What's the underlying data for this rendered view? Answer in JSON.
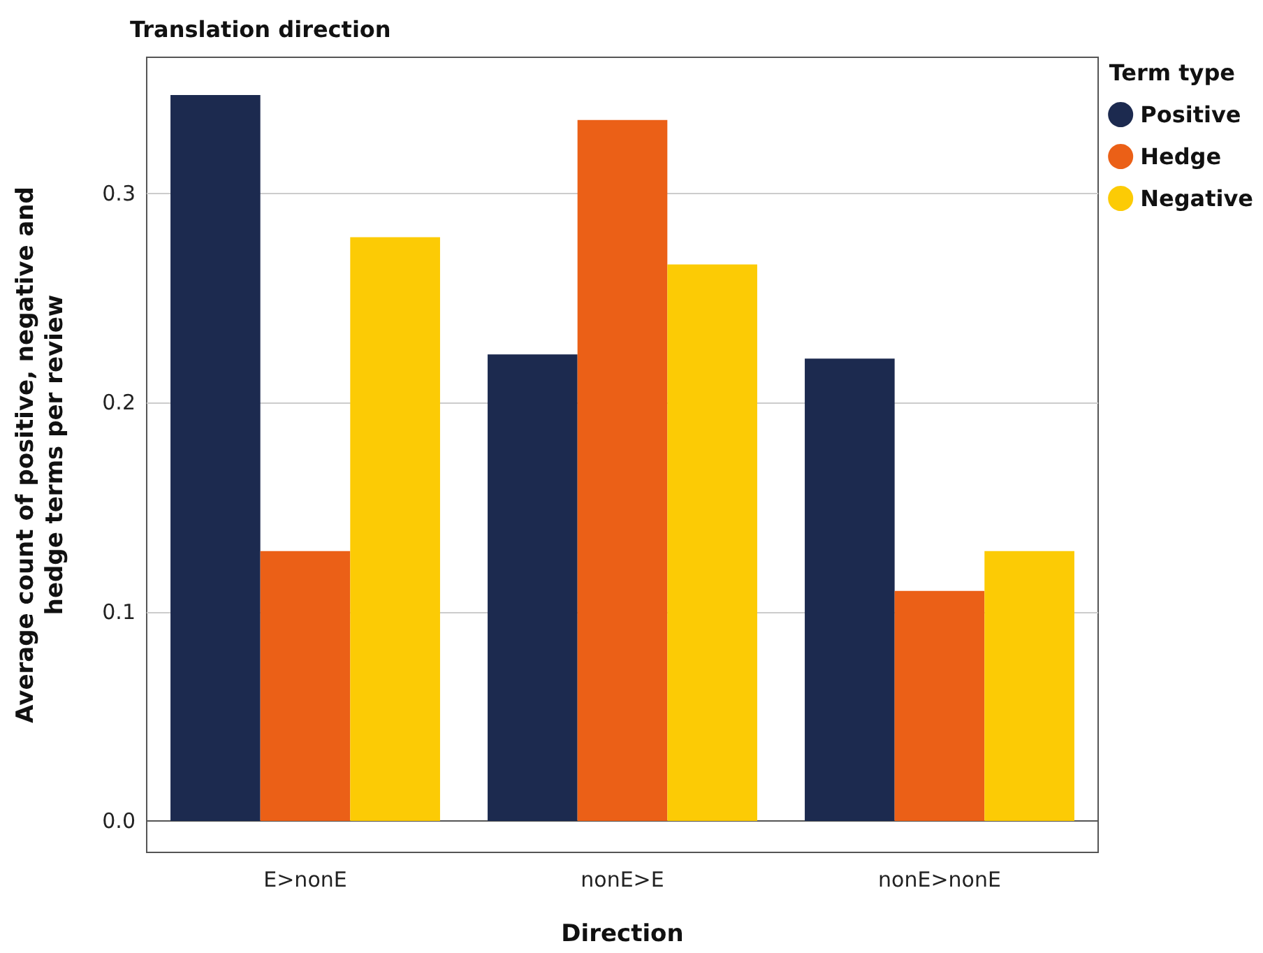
{
  "chart_data": {
    "type": "bar",
    "title": "Translation direction",
    "xlabel": "Direction",
    "ylabel": "Average count of positive, negative and\nhedge terms per review",
    "legend_title": "Term type",
    "categories": [
      "E>nonE",
      "nonE>E",
      "nonE>nonE"
    ],
    "series": [
      {
        "name": "Positive",
        "color": "#1c2a4f",
        "values": [
          0.347,
          0.223,
          0.221
        ]
      },
      {
        "name": "Hedge",
        "color": "#eb6017",
        "values": [
          0.129,
          0.335,
          0.11
        ]
      },
      {
        "name": "Negative",
        "color": "#fccb05",
        "values": [
          0.279,
          0.266,
          0.129
        ]
      }
    ],
    "ylim": [
      -0.015,
      0.365
    ],
    "yticks": [
      {
        "value": 0,
        "label": "0.0"
      },
      0.1,
      0.2,
      0.3
    ],
    "grid": "y",
    "legend": "right",
    "marker": "circle"
  }
}
